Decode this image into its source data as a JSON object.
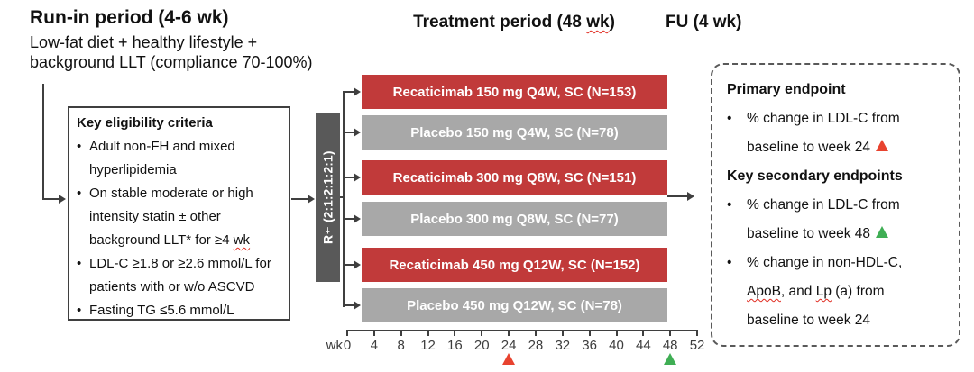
{
  "header": {
    "runin_title": "Run-in period (4-6 wk)",
    "runin_subtitle": "Low-fat diet + healthy lifestyle + background LLT (compliance 70-100%)",
    "treatment_title": "Treatment period (48 wk)",
    "fu_title": "FU (4 wk)"
  },
  "eligibility": {
    "title": "Key eligibility criteria",
    "items": [
      "Adult non-FH and mixed hyperlipidemia",
      "On stable moderate or high intensity statin ± other background LLT* for ≥4 wk",
      "LDL-C ≥1.8 or ≥2.6 mmol/L for patients with or w/o ASCVD",
      "Fasting TG ≤5.6 mmol/L"
    ]
  },
  "randomization": {
    "label_r": "R",
    "label_sup": "†",
    "label_ratio": "(2:1:2:1:2:1)"
  },
  "treatment": {
    "bars": [
      {
        "label": "Recaticimab 150 mg Q4W, SC (N=153)",
        "type": "active"
      },
      {
        "label": "Placebo 150 mg Q4W, SC (N=78)",
        "type": "placebo"
      },
      {
        "label": "Recaticimab 300 mg Q8W, SC (N=151)",
        "type": "active"
      },
      {
        "label": "Placebo 300 mg Q8W, SC (N=77)",
        "type": "placebo"
      },
      {
        "label": "Recaticimab 450 mg Q12W, SC (N=152)",
        "type": "active"
      },
      {
        "label": "Placebo 450 mg Q12W, SC (N=78)",
        "type": "placebo"
      }
    ]
  },
  "axis": {
    "unit_label": "wk",
    "weeks": [
      0,
      4,
      8,
      12,
      16,
      20,
      24,
      28,
      32,
      36,
      40,
      44,
      48,
      52
    ],
    "markers": [
      {
        "week": 24,
        "color": "#e8432f",
        "name": "primary-endpoint-week-marker"
      },
      {
        "week": 48,
        "color": "#3fae54",
        "name": "secondary-endpoint-week-marker"
      }
    ]
  },
  "endpoints": {
    "sections": [
      {
        "heading": "Primary endpoint",
        "items": [
          {
            "text": "% change in LDL-C from baseline to week 24",
            "marker": "red"
          }
        ]
      },
      {
        "heading": "Key secondary endpoints",
        "items": [
          {
            "text": "% change in LDL-C from baseline to week 48",
            "marker": "green"
          },
          {
            "text": "% change in non-HDL-C, ApoB, and Lp (a) from baseline to week 24",
            "marker": null
          }
        ]
      }
    ]
  },
  "colors": {
    "active_bar": "#c13a3a",
    "placebo_bar": "#a8a8a8",
    "randomization_bar": "#595959",
    "connector": "#3f3f3f",
    "marker_red": "#e8432f",
    "marker_green": "#3fae54"
  },
  "bullet_char": "•",
  "spellcheck_tokens": [
    "wk",
    "ApoB",
    "Lp"
  ]
}
